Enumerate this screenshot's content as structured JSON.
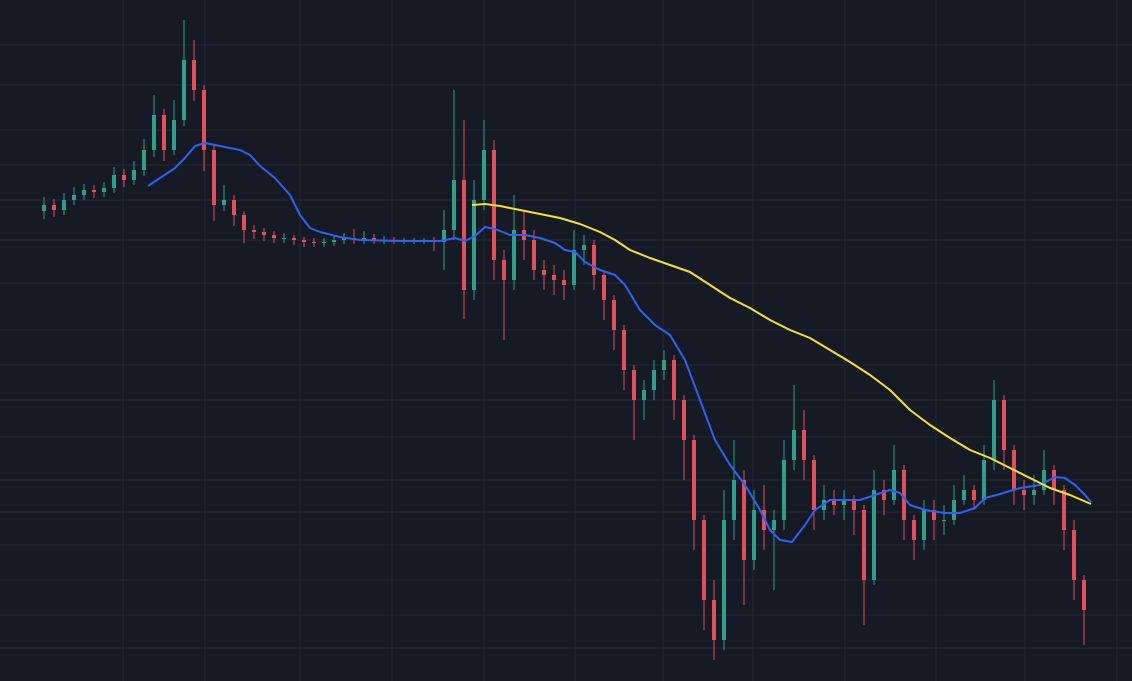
{
  "chart_data": {
    "type": "candlestick",
    "xlim": [
      0,
      1132
    ],
    "ylim": [
      0,
      681
    ],
    "xticks": [
      123,
      205,
      300,
      392,
      484,
      575,
      663,
      753,
      845,
      936,
      1025,
      1117
    ],
    "yticks": [
      33,
      66,
      101,
      136,
      169,
      201,
      244,
      281,
      316,
      351,
      398,
      441,
      481,
      516,
      551,
      596,
      636
    ],
    "grid": true,
    "up_color": "#2f9e8a",
    "down_color": "#e0505d",
    "x": [
      44,
      54,
      64,
      74,
      84,
      94,
      104,
      114,
      124,
      134,
      144,
      154,
      164,
      174,
      184,
      194,
      204,
      214,
      224,
      234,
      244,
      254,
      264,
      274,
      284,
      294,
      304,
      314,
      324,
      334,
      344,
      354,
      364,
      374,
      384,
      394,
      404,
      414,
      424,
      434,
      444,
      454,
      464,
      474,
      484,
      494,
      504,
      514,
      524,
      534,
      544,
      554,
      564,
      574,
      584,
      594,
      604,
      614,
      624,
      634,
      644,
      654,
      664,
      674,
      684,
      694,
      704,
      714,
      724,
      734,
      744,
      754,
      764,
      774,
      784,
      794,
      804,
      814,
      824,
      834,
      844,
      854,
      864,
      874,
      884,
      894,
      904,
      914,
      924,
      934,
      944,
      954,
      964,
      974,
      984,
      994,
      1004,
      1014,
      1024,
      1034,
      1044,
      1054,
      1064,
      1074,
      1084
    ],
    "open": [
      470,
      476,
      471,
      481,
      486,
      491,
      489,
      493,
      506,
      501,
      511,
      531,
      566,
      531,
      561,
      621,
      591,
      531,
      476,
      481,
      466,
      451,
      449,
      446,
      443,
      443,
      441,
      439,
      438,
      439,
      441,
      443,
      441,
      443,
      441,
      441,
      440,
      440,
      440,
      440,
      439,
      451,
      501,
      391,
      481,
      531,
      421,
      401,
      451,
      441,
      411,
      406,
      401,
      396,
      431,
      436,
      406,
      381,
      351,
      311,
      281,
      291,
      311,
      321,
      281,
      241,
      161,
      81,
      41,
      161,
      201,
      121,
      171,
      151,
      161,
      221,
      251,
      221,
      171,
      181,
      176,
      181,
      171,
      101,
      191,
      181,
      211,
      161,
      141,
      171,
      161,
      161,
      181,
      191,
      181,
      221,
      281,
      231,
      191,
      186,
      191,
      211,
      191,
      151,
      101
    ],
    "high": [
      484,
      482,
      488,
      494,
      497,
      496,
      499,
      514,
      512,
      520,
      542,
      586,
      572,
      581,
      661,
      641,
      596,
      536,
      496,
      486,
      470,
      456,
      453,
      450,
      448,
      446,
      444,
      443,
      443,
      445,
      448,
      452,
      450,
      447,
      445,
      444,
      443,
      443,
      443,
      444,
      471,
      591,
      561,
      501,
      561,
      541,
      431,
      486,
      471,
      451,
      421,
      416,
      411,
      451,
      446,
      441,
      411,
      386,
      356,
      316,
      301,
      321,
      331,
      326,
      286,
      246,
      166,
      101,
      191,
      241,
      211,
      191,
      196,
      171,
      241,
      296,
      271,
      226,
      196,
      191,
      191,
      186,
      176,
      211,
      201,
      236,
      216,
      166,
      181,
      181,
      176,
      196,
      206,
      196,
      236,
      301,
      286,
      236,
      201,
      206,
      231,
      216,
      196,
      161,
      106
    ],
    "low": [
      462,
      464,
      466,
      476,
      481,
      483,
      484,
      488,
      494,
      496,
      505,
      524,
      520,
      526,
      555,
      580,
      510,
      460,
      470,
      455,
      438,
      442,
      440,
      438,
      438,
      436,
      434,
      434,
      434,
      435,
      437,
      437,
      437,
      437,
      437,
      437,
      437,
      437,
      437,
      430,
      411,
      441,
      362,
      381,
      471,
      401,
      341,
      391,
      421,
      401,
      391,
      386,
      381,
      391,
      416,
      391,
      361,
      331,
      291,
      241,
      261,
      281,
      301,
      261,
      201,
      131,
      51,
      21,
      31,
      141,
      76,
      111,
      131,
      91,
      151,
      211,
      201,
      151,
      161,
      166,
      161,
      146,
      56,
      96,
      166,
      176,
      141,
      121,
      131,
      141,
      146,
      156,
      176,
      171,
      176,
      211,
      211,
      176,
      171,
      176,
      186,
      176,
      131,
      81,
      36
    ],
    "close": [
      476,
      471,
      481,
      486,
      491,
      489,
      493,
      506,
      501,
      511,
      531,
      566,
      531,
      561,
      621,
      591,
      531,
      476,
      481,
      466,
      451,
      449,
      446,
      443,
      443,
      441,
      439,
      438,
      439,
      441,
      443,
      441,
      443,
      441,
      441,
      440,
      440,
      440,
      440,
      439,
      451,
      501,
      391,
      481,
      531,
      421,
      401,
      451,
      441,
      411,
      406,
      401,
      396,
      431,
      436,
      406,
      381,
      351,
      311,
      281,
      291,
      311,
      321,
      281,
      241,
      161,
      81,
      41,
      161,
      201,
      121,
      171,
      151,
      161,
      221,
      251,
      221,
      171,
      181,
      176,
      181,
      171,
      101,
      191,
      181,
      211,
      161,
      141,
      171,
      161,
      161,
      181,
      191,
      181,
      221,
      281,
      231,
      191,
      186,
      191,
      211,
      191,
      151,
      101,
      71
    ],
    "series": [
      {
        "color": "#2f62f0",
        "x": [
          148,
          160,
          175,
          185,
          195,
          205,
          220,
          240,
          250,
          260,
          275,
          290,
          300,
          310,
          320,
          340,
          360,
          400,
          440,
          455,
          465,
          475,
          485,
          495,
          510,
          525,
          540,
          555,
          565,
          575,
          585,
          600,
          615,
          625,
          640,
          655,
          670,
          685,
          700,
          715,
          730,
          745,
          760,
          770,
          780,
          792,
          805,
          815,
          830,
          845,
          860,
          875,
          890,
          900,
          910,
          925,
          945,
          960,
          975,
          985,
          1000,
          1020,
          1040,
          1055,
          1065,
          1075,
          1085,
          1091
        ],
        "values": [
          495,
          503,
          513,
          523,
          535,
          538,
          535,
          531,
          526,
          515,
          503,
          486,
          466,
          453,
          449,
          444,
          441,
          440,
          440,
          443,
          440,
          445,
          454,
          452,
          446,
          446,
          443,
          438,
          431,
          429,
          419,
          411,
          406,
          396,
          371,
          356,
          346,
          321,
          281,
          241,
          216,
          196,
          171,
          151,
          141,
          139,
          156,
          171,
          181,
          181,
          181,
          186,
          191,
          188,
          176,
          171,
          168,
          168,
          173,
          183,
          187,
          193,
          196,
          204,
          203,
          196,
          186,
          179
        ]
      },
      {
        "color": "#f2e03a",
        "x": [
          472,
          485,
          500,
          520,
          540,
          560,
          580,
          600,
          615,
          630,
          650,
          670,
          690,
          710,
          730,
          750,
          770,
          790,
          810,
          830,
          850,
          870,
          890,
          910,
          930,
          950,
          970,
          990,
          1010,
          1030,
          1050,
          1070,
          1091
        ],
        "values": [
          476,
          477,
          475,
          471,
          467,
          463,
          457,
          449,
          441,
          431,
          423,
          416,
          409,
          396,
          383,
          373,
          361,
          351,
          343,
          331,
          319,
          306,
          291,
          271,
          256,
          243,
          231,
          223,
          213,
          203,
          193,
          186,
          177
        ]
      }
    ]
  }
}
